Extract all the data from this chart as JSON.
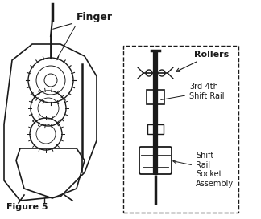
{
  "title": "Figure 5",
  "background_color": "#ffffff",
  "labels": {
    "finger": "Finger",
    "rollers": "Rollers",
    "shift_rail": "3rd-4th\nShift Rail",
    "socket": "Shift\nRail\nSocket\nAssembly",
    "figure": "Figure 5"
  },
  "line_color": "#1a1a1a",
  "text_color": "#1a1a1a"
}
